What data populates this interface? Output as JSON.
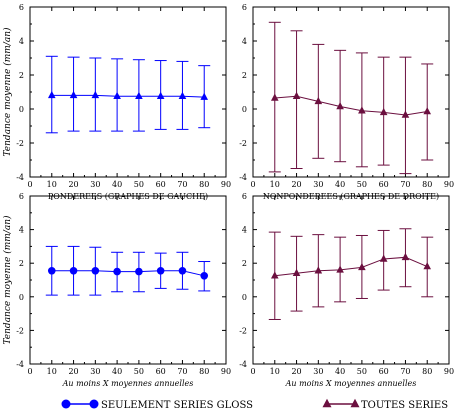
{
  "chart_data": [
    {
      "type": "line",
      "panel": "top-left",
      "xlabel": "PONDEREES (GRAPHES DE GAUCHE)",
      "ylabel": "Tendance moyenne (mm/an)",
      "xlim": [
        0,
        90
      ],
      "ylim": [
        -4,
        6
      ],
      "x_ticks": [
        0,
        10,
        20,
        30,
        40,
        50,
        60,
        70,
        80,
        90
      ],
      "y_ticks": [
        -4,
        -2,
        0,
        2,
        4,
        6
      ],
      "color": "#0000ff",
      "marker": "triangle",
      "series": [
        {
          "x": [
            10,
            20,
            30,
            40,
            50,
            60,
            70,
            80
          ],
          "y": [
            0.8,
            0.8,
            0.8,
            0.75,
            0.75,
            0.75,
            0.75,
            0.7
          ],
          "err_low": [
            -1.4,
            -1.3,
            -1.3,
            -1.3,
            -1.3,
            -1.2,
            -1.2,
            -1.1
          ],
          "err_high": [
            3.1,
            3.05,
            3.0,
            2.95,
            2.9,
            2.85,
            2.8,
            2.55
          ]
        }
      ]
    },
    {
      "type": "line",
      "panel": "top-right",
      "xlabel": "NONPONDEREES (GRAPHES DE DROITE)",
      "ylabel": "",
      "xlim": [
        0,
        90
      ],
      "ylim": [
        -4,
        6
      ],
      "x_ticks": [
        0,
        10,
        20,
        30,
        40,
        50,
        60,
        70,
        80,
        90
      ],
      "y_ticks": [
        -4,
        -2,
        0,
        2,
        4,
        6
      ],
      "color": "#6b0f3f",
      "marker": "triangle",
      "series": [
        {
          "x": [
            10,
            20,
            30,
            40,
            50,
            60,
            70,
            80
          ],
          "y": [
            0.65,
            0.75,
            0.45,
            0.15,
            -0.1,
            -0.2,
            -0.35,
            -0.15
          ],
          "err_low": [
            -3.7,
            -3.5,
            -2.9,
            -3.1,
            -3.4,
            -3.3,
            -3.8,
            -3.0
          ],
          "err_high": [
            5.1,
            4.6,
            3.8,
            3.45,
            3.3,
            3.05,
            3.05,
            2.65
          ]
        }
      ]
    },
    {
      "type": "line",
      "panel": "bottom-left",
      "xlabel": "Au moins X moyennes annuelles",
      "ylabel": "Tendance moyenne (mm/an)",
      "xlim": [
        0,
        90
      ],
      "ylim": [
        -4,
        6
      ],
      "x_ticks": [
        0,
        10,
        20,
        30,
        40,
        50,
        60,
        70,
        80,
        90
      ],
      "y_ticks": [
        -4,
        -2,
        0,
        2,
        4,
        6
      ],
      "color": "#0000ff",
      "marker": "circle",
      "series": [
        {
          "x": [
            10,
            20,
            30,
            40,
            50,
            60,
            70,
            80
          ],
          "y": [
            1.55,
            1.55,
            1.55,
            1.5,
            1.5,
            1.55,
            1.55,
            1.25
          ],
          "err_low": [
            0.1,
            0.1,
            0.1,
            0.3,
            0.3,
            0.5,
            0.45,
            0.35
          ],
          "err_high": [
            3.0,
            3.0,
            2.95,
            2.65,
            2.65,
            2.6,
            2.65,
            2.1
          ]
        }
      ]
    },
    {
      "type": "line",
      "panel": "bottom-right",
      "xlabel": "Au moins X moyennes annuelles",
      "ylabel": "",
      "xlim": [
        0,
        90
      ],
      "ylim": [
        -4,
        6
      ],
      "x_ticks": [
        0,
        10,
        20,
        30,
        40,
        50,
        60,
        70,
        80,
        90
      ],
      "y_ticks": [
        -4,
        -2,
        0,
        2,
        4,
        6
      ],
      "color": "#6b0f3f",
      "marker": "triangle",
      "series": [
        {
          "x": [
            10,
            20,
            30,
            40,
            50,
            60,
            70,
            80
          ],
          "y": [
            1.25,
            1.4,
            1.55,
            1.6,
            1.75,
            2.25,
            2.35,
            1.8
          ],
          "err_low": [
            -1.35,
            -0.85,
            -0.6,
            -0.3,
            -0.1,
            0.4,
            0.6,
            0.0
          ],
          "err_high": [
            3.85,
            3.6,
            3.7,
            3.55,
            3.65,
            3.95,
            4.05,
            3.55
          ]
        }
      ]
    }
  ],
  "legend": {
    "items": [
      {
        "label": "SEULEMENT SERIES GLOSS",
        "color": "#0000ff",
        "marker": "circle"
      },
      {
        "label": "TOUTES SERIES",
        "color": "#6b0f3f",
        "marker": "triangle"
      }
    ]
  }
}
